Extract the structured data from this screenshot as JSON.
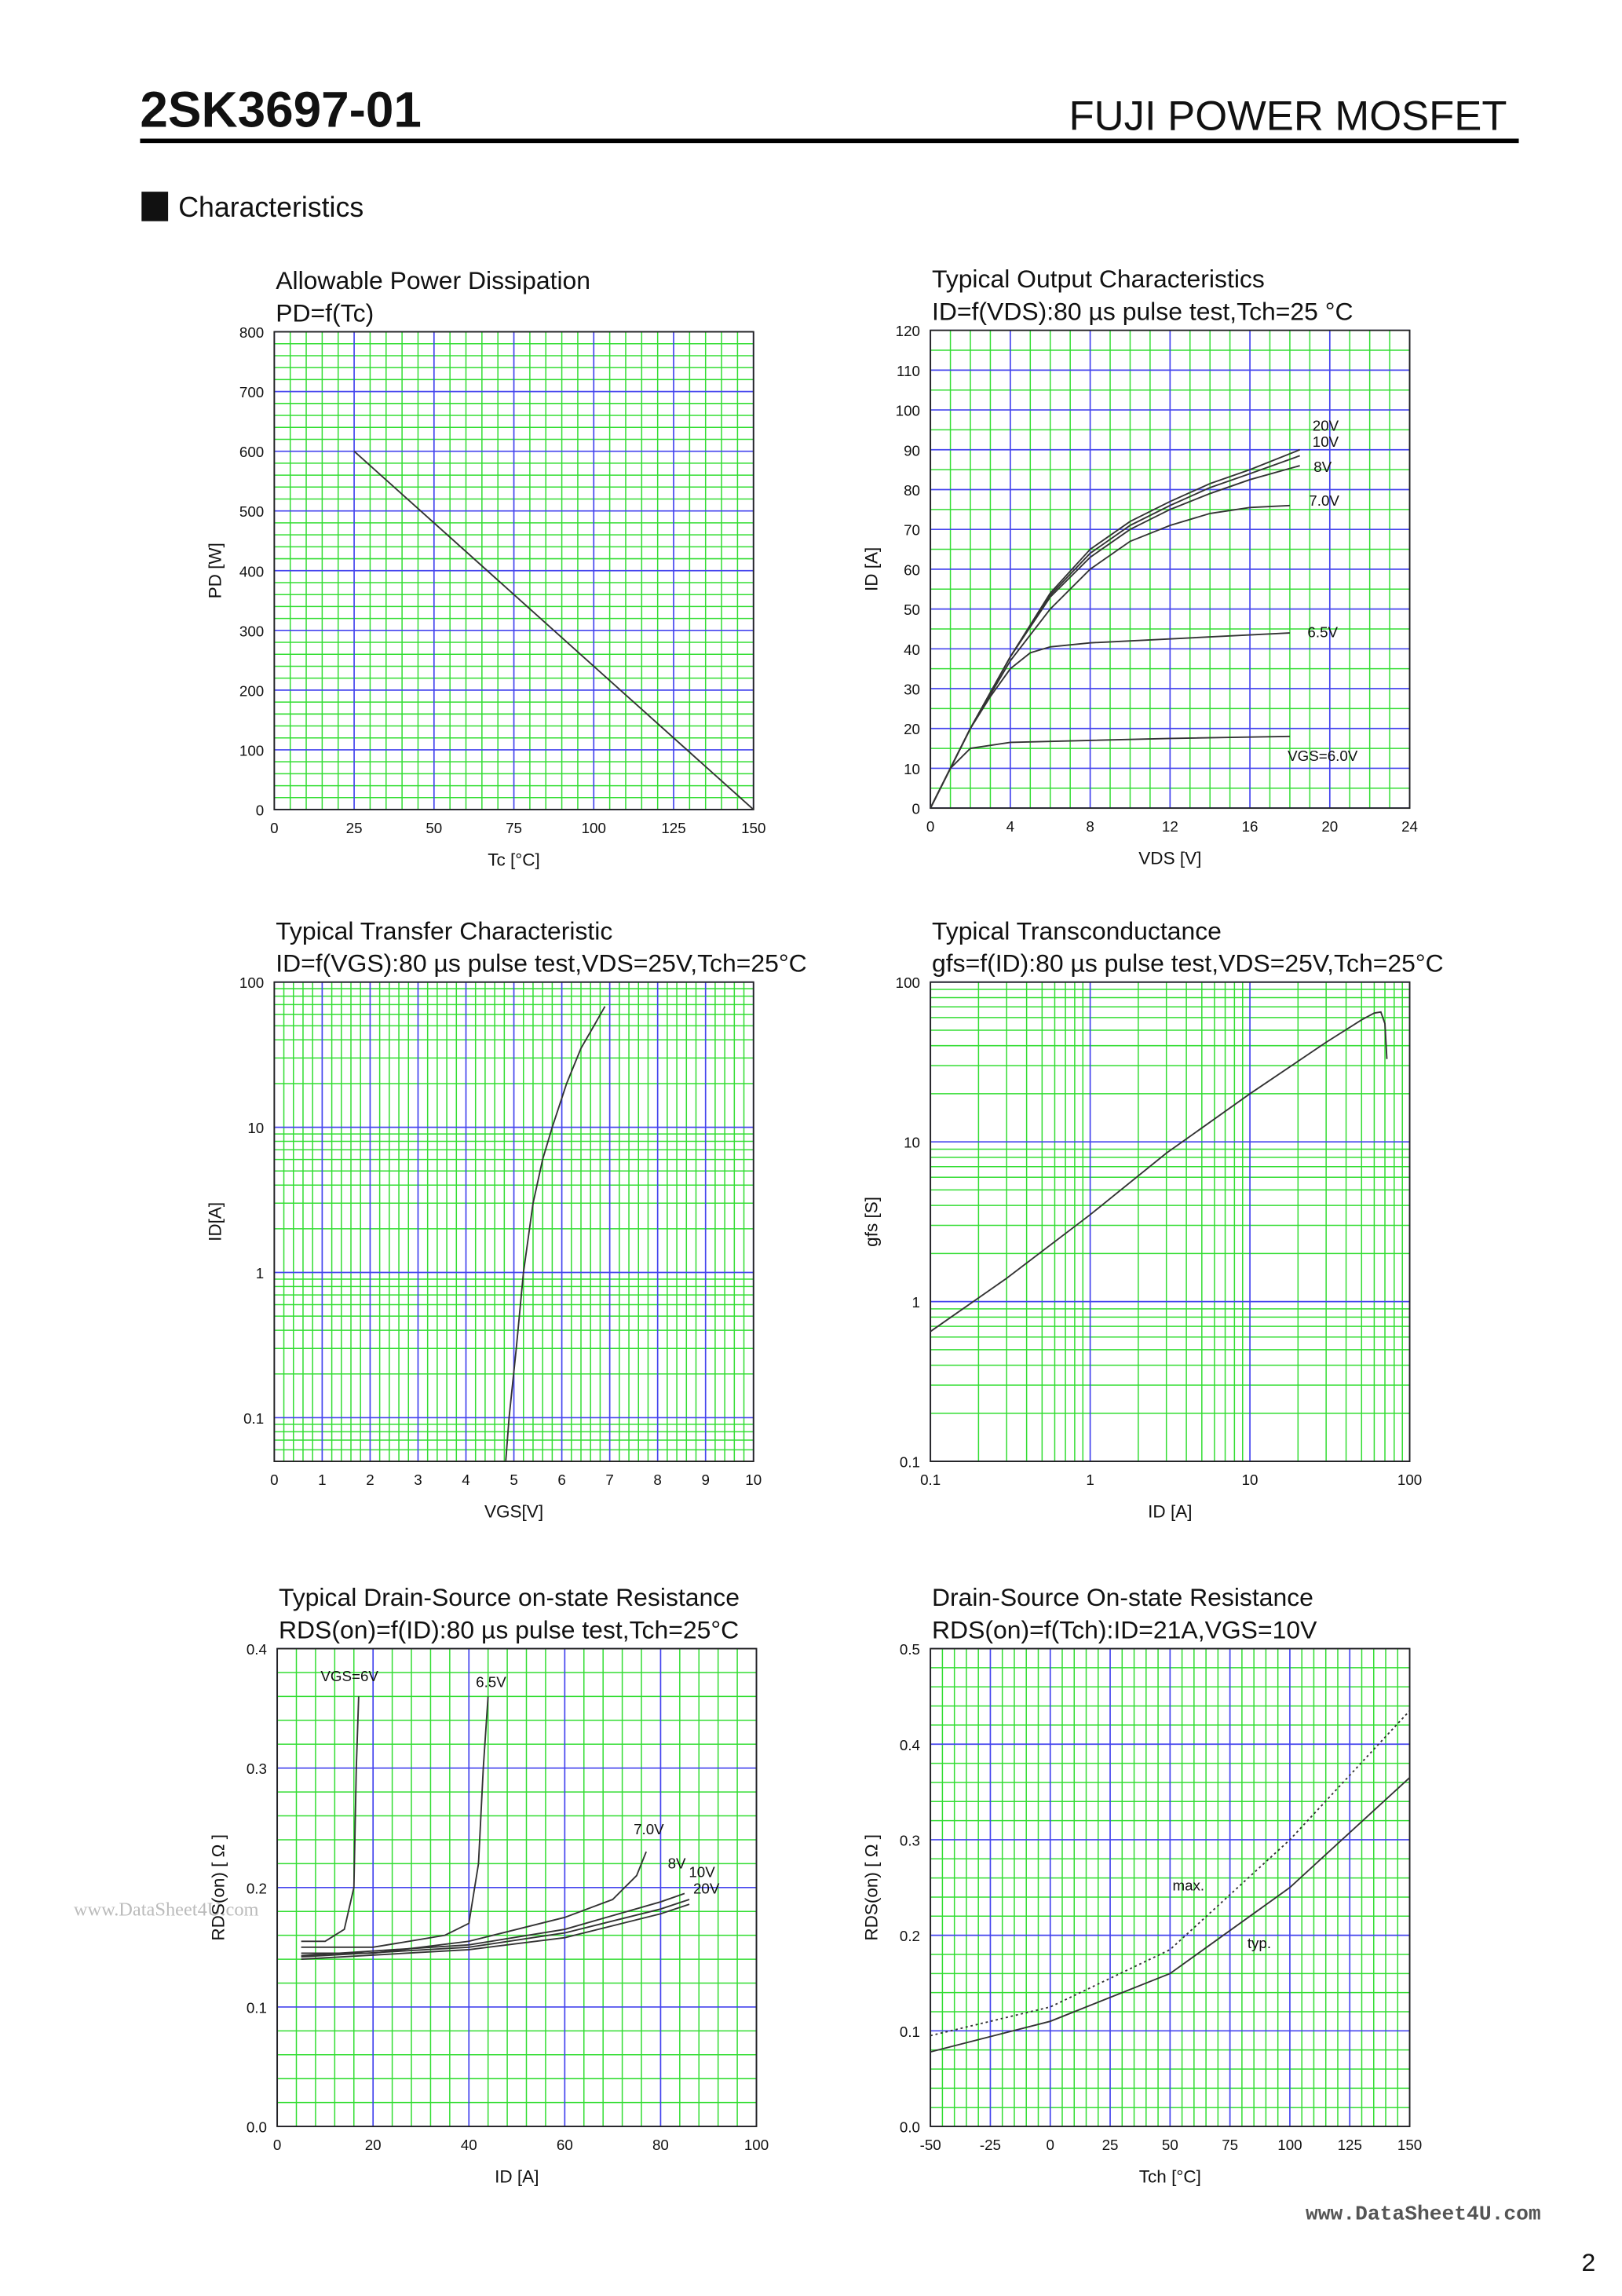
{
  "header": {
    "part": "2SK3697-01",
    "brand": "FUJI POWER MOSFET",
    "section": "Characteristics"
  },
  "footer": {
    "watermark": "www.DataSheet4U.com",
    "page": "2"
  },
  "chart_data": [
    {
      "type": "line",
      "title": "Allowable Power Dissipation",
      "subtitle": "PD=f(Tc)",
      "xlabel": "Tc [°C]",
      "ylabel": "PD [W]",
      "xlim": [
        0,
        150
      ],
      "ylim": [
        0,
        800
      ],
      "xticks": [
        0,
        25,
        50,
        75,
        100,
        125,
        150
      ],
      "yticks": [
        0,
        100,
        200,
        300,
        400,
        500,
        600,
        700,
        800
      ],
      "grid": true,
      "color": "#333333",
      "series": [
        {
          "x": [
            25,
            150
          ],
          "values": [
            600,
            0
          ]
        }
      ]
    },
    {
      "type": "line",
      "title": "Typical Output Characteristics",
      "subtitle": "ID=f(VDS):80 µs pulse test,Tch=25 °C",
      "xlabel": "VDS [V]",
      "ylabel": "ID [A]",
      "xlim": [
        0,
        24
      ],
      "ylim": [
        0,
        120
      ],
      "xticks": [
        0,
        4,
        8,
        12,
        16,
        20,
        24
      ],
      "yticks": [
        0,
        10,
        20,
        30,
        40,
        50,
        60,
        70,
        80,
        90,
        100,
        110,
        120
      ],
      "grid": true,
      "color": "#333333",
      "series": [
        {
          "name": "20V",
          "x": [
            0,
            2,
            4,
            6,
            8,
            10,
            12,
            14,
            16,
            18.5
          ],
          "values": [
            0,
            20,
            38,
            54,
            65,
            72,
            77,
            81.5,
            85,
            90
          ]
        },
        {
          "name": "10V",
          "x": [
            0,
            2,
            4,
            6,
            8,
            10,
            12,
            14,
            16,
            18.5
          ],
          "values": [
            0,
            20,
            38,
            53.5,
            64,
            71,
            76,
            80.5,
            84,
            88.5
          ]
        },
        {
          "name": "8V",
          "x": [
            0,
            2,
            4,
            6,
            8,
            10,
            12,
            14,
            16,
            18.5
          ],
          "values": [
            0,
            20,
            38,
            53,
            63,
            70,
            75,
            79,
            82.5,
            86
          ]
        },
        {
          "name": "7.0V",
          "x": [
            0,
            2,
            4,
            6,
            8,
            10,
            12,
            14,
            16,
            18
          ],
          "values": [
            0,
            20,
            37,
            50,
            60,
            67,
            71,
            74,
            75.5,
            76
          ]
        },
        {
          "name": "6.5V",
          "x": [
            0,
            1,
            2,
            3,
            4,
            5,
            6,
            8,
            12,
            18
          ],
          "values": [
            0,
            10,
            20,
            28,
            35,
            39,
            40.5,
            41.5,
            42.5,
            44
          ]
        },
        {
          "name": "VGS=6.0V",
          "x": [
            0,
            1,
            2,
            4,
            8,
            12,
            18
          ],
          "values": [
            0,
            10,
            15,
            16.5,
            17,
            17.5,
            18
          ]
        }
      ]
    },
    {
      "type": "line",
      "title": "Typical Transfer Characteristic",
      "subtitle": "ID=f(VGS):80 µs pulse test,VDS=25V,Tch=25°C",
      "xlabel": "VGS[V]",
      "ylabel": "ID[A]",
      "xlim": [
        0,
        10
      ],
      "ylim": [
        0.05,
        100
      ],
      "ylog": true,
      "xticks": [
        0,
        1,
        2,
        3,
        4,
        5,
        6,
        7,
        8,
        9,
        10
      ],
      "yticks": [
        0.1,
        1,
        10,
        100
      ],
      "grid": true,
      "color": "#333333",
      "series": [
        {
          "x": [
            4.83,
            4.9,
            5.05,
            5.2,
            5.4,
            5.6,
            5.8,
            6.1,
            6.4,
            6.7,
            6.9
          ],
          "values": [
            0.05,
            0.1,
            0.3,
            1,
            3,
            6,
            10,
            20,
            35,
            52,
            68
          ]
        }
      ]
    },
    {
      "type": "line",
      "title": "Typical Transconductance",
      "subtitle": "gfs=f(ID):80 µs pulse test,VDS=25V,Tch=25°C",
      "xlabel": "ID [A]",
      "ylabel": "gfs [S]",
      "xlim": [
        0.1,
        100
      ],
      "ylim": [
        0.1,
        100
      ],
      "xlog": true,
      "ylog": true,
      "xticks": [
        0.1,
        1,
        10,
        100
      ],
      "yticks": [
        0.1,
        1,
        10,
        100
      ],
      "grid": true,
      "color": "#333333",
      "series": [
        {
          "x": [
            0.1,
            0.3,
            1,
            3,
            10,
            30,
            50,
            60,
            66,
            70,
            72
          ],
          "values": [
            0.65,
            1.4,
            3.5,
            8.5,
            20,
            42,
            58,
            64,
            65,
            55,
            33
          ]
        }
      ]
    },
    {
      "type": "line",
      "title": "Typical Drain-Source on-state Resistance",
      "subtitle": "RDS(on)=f(ID):80  µs pulse test,Tch=25°C",
      "xlabel": "ID [A]",
      "ylabel": "RDS(on) [ Ω ]",
      "xlim": [
        0,
        100
      ],
      "ylim": [
        0,
        0.4
      ],
      "xticks": [
        0,
        20,
        40,
        60,
        80,
        100
      ],
      "yticks": [
        {
          "value": 0,
          "label": "0.0"
        },
        0.1,
        0.2,
        0.3,
        0.4
      ],
      "grid": true,
      "color": "#333333",
      "series": [
        {
          "name": "VGS=6V",
          "x": [
            5,
            10,
            14,
            16,
            16.5,
            17
          ],
          "values": [
            0.155,
            0.155,
            0.165,
            0.2,
            0.3,
            0.36
          ]
        },
        {
          "name": "6.5V",
          "x": [
            5,
            20,
            35,
            40,
            42,
            43,
            44
          ],
          "values": [
            0.15,
            0.15,
            0.16,
            0.17,
            0.22,
            0.3,
            0.36
          ]
        },
        {
          "name": "7.0V",
          "x": [
            5,
            20,
            40,
            60,
            70,
            75,
            77
          ],
          "values": [
            0.145,
            0.145,
            0.155,
            0.175,
            0.19,
            0.21,
            0.23
          ]
        },
        {
          "name": "8V",
          "x": [
            5,
            40,
            60,
            80,
            85
          ],
          "values": [
            0.143,
            0.152,
            0.165,
            0.188,
            0.195
          ]
        },
        {
          "name": "10V",
          "x": [
            5,
            40,
            60,
            80,
            86
          ],
          "values": [
            0.142,
            0.15,
            0.162,
            0.182,
            0.19
          ]
        },
        {
          "name": "20V",
          "x": [
            5,
            40,
            60,
            80,
            86
          ],
          "values": [
            0.14,
            0.148,
            0.158,
            0.178,
            0.186
          ]
        }
      ]
    },
    {
      "type": "line",
      "title": "Drain-Source On-state Resistance",
      "subtitle": "RDS(on)=f(Tch):ID=21A,VGS=10V",
      "xlabel": "Tch [°C]",
      "ylabel": "RDS(on) [ Ω ]",
      "xlim": [
        -50,
        150
      ],
      "ylim": [
        0,
        0.5
      ],
      "xticks": [
        -50,
        -25,
        0,
        25,
        50,
        75,
        100,
        125,
        150
      ],
      "yticks": [
        {
          "value": 0,
          "label": "0.0"
        },
        0.1,
        0.2,
        0.3,
        0.4,
        0.5
      ],
      "grid": true,
      "color": "#333333",
      "series": [
        {
          "name": "max.",
          "style": "dotted",
          "x": [
            -50,
            0,
            50,
            100,
            150
          ],
          "values": [
            0.095,
            0.125,
            0.185,
            0.3,
            0.435
          ]
        },
        {
          "name": "typ.",
          "x": [
            -50,
            0,
            50,
            100,
            150
          ],
          "values": [
            0.078,
            0.11,
            0.16,
            0.25,
            0.365
          ]
        }
      ]
    }
  ]
}
